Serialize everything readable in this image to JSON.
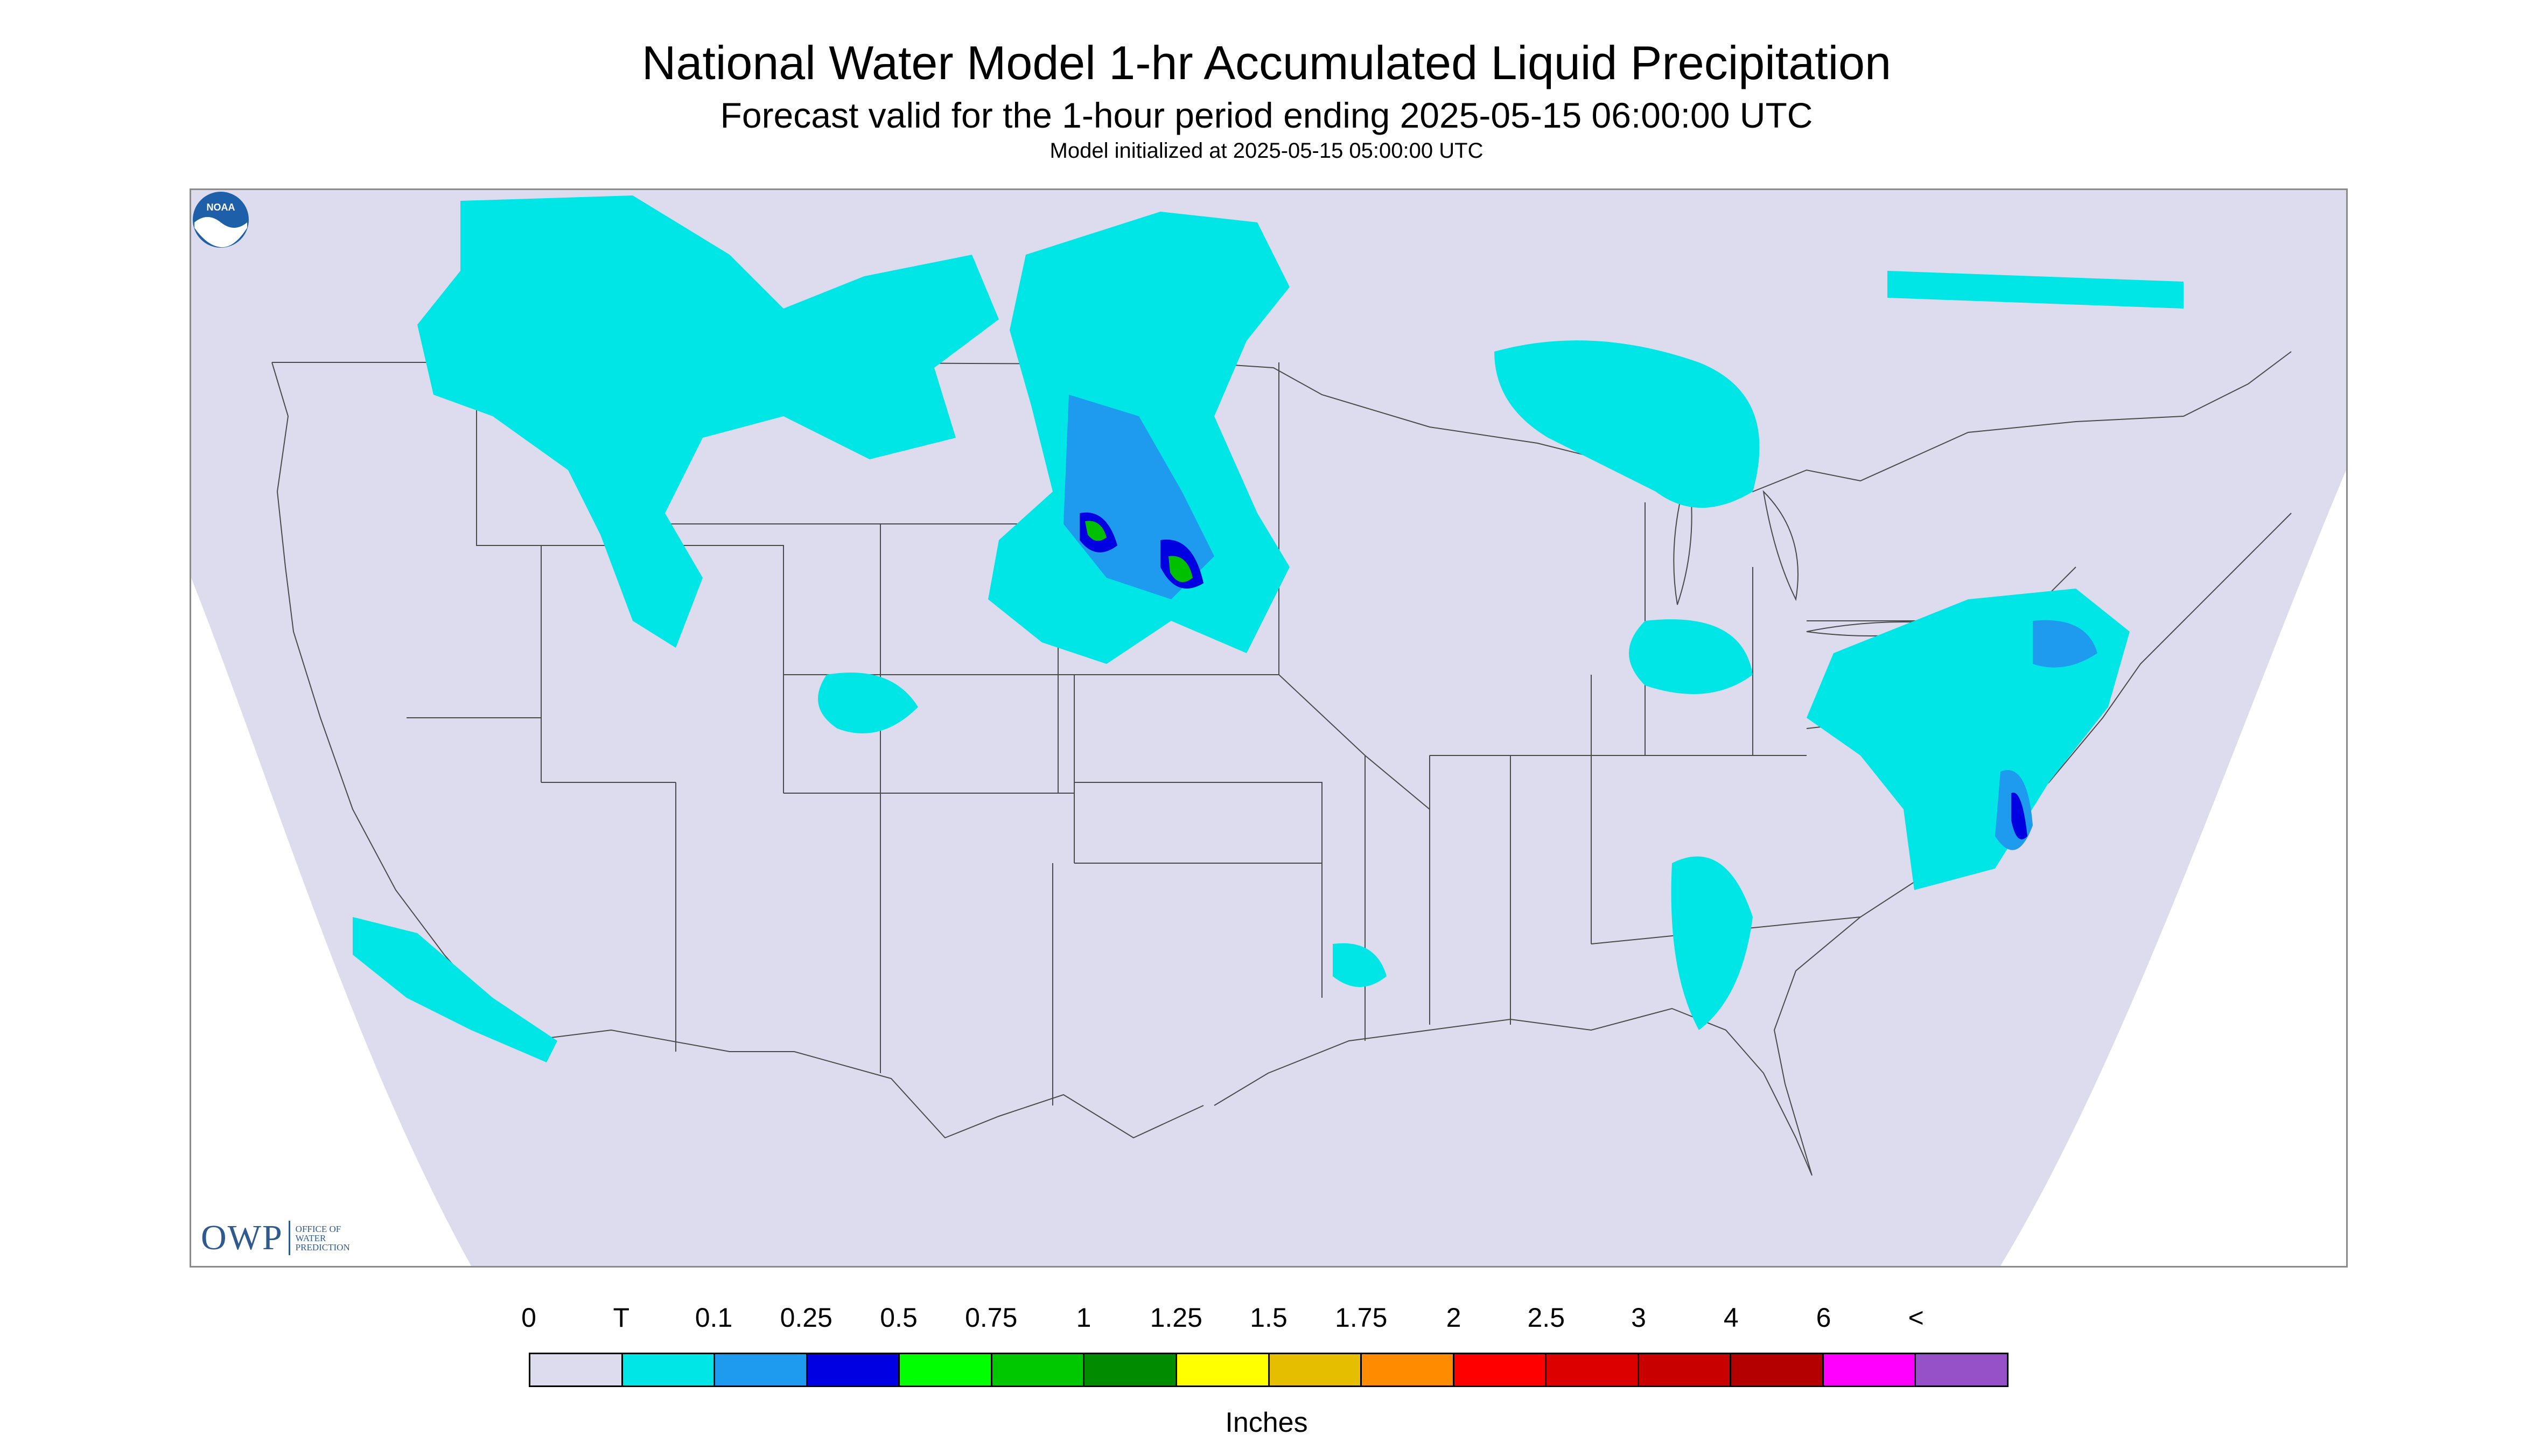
{
  "title": "National Water Model 1-hr Accumulated Liquid Precipitation",
  "subtitle": "Forecast valid for the 1-hour period ending 2025-05-15 06:00:00 UTC",
  "init_text": "Model initialized at 2025-05-15 05:00:00 UTC",
  "logos": {
    "owp_letters": "OWP",
    "owp_name": "OFFICE OF WATER PREDICTION",
    "noaa": "NOAA"
  },
  "colors": {
    "background": "#dcdcee",
    "border": "#8a8a8a",
    "boundary_lines": "#4a4a4a",
    "precip_trace": "#00e5e5",
    "precip_mid": "#1e9bee",
    "precip_heavy": "#0000e0",
    "precip_very_heavy": "#00c000"
  },
  "legend": {
    "units": "Inches",
    "tick_labels": [
      "0",
      "T",
      "0.1",
      "0.25",
      "0.5",
      "0.75",
      "1",
      "1.25",
      "1.5",
      "1.75",
      "2",
      "2.5",
      "3",
      "4",
      "6",
      "<"
    ],
    "swatch_colors": [
      "#dcdcee",
      "#00e5e5",
      "#1e9bee",
      "#0000e0",
      "#00ff00",
      "#00c800",
      "#008c00",
      "#ffff00",
      "#e6be00",
      "#ff8c00",
      "#ff0000",
      "#dc0000",
      "#c80000",
      "#b40000",
      "#ff00ff",
      "#9650c8"
    ]
  }
}
